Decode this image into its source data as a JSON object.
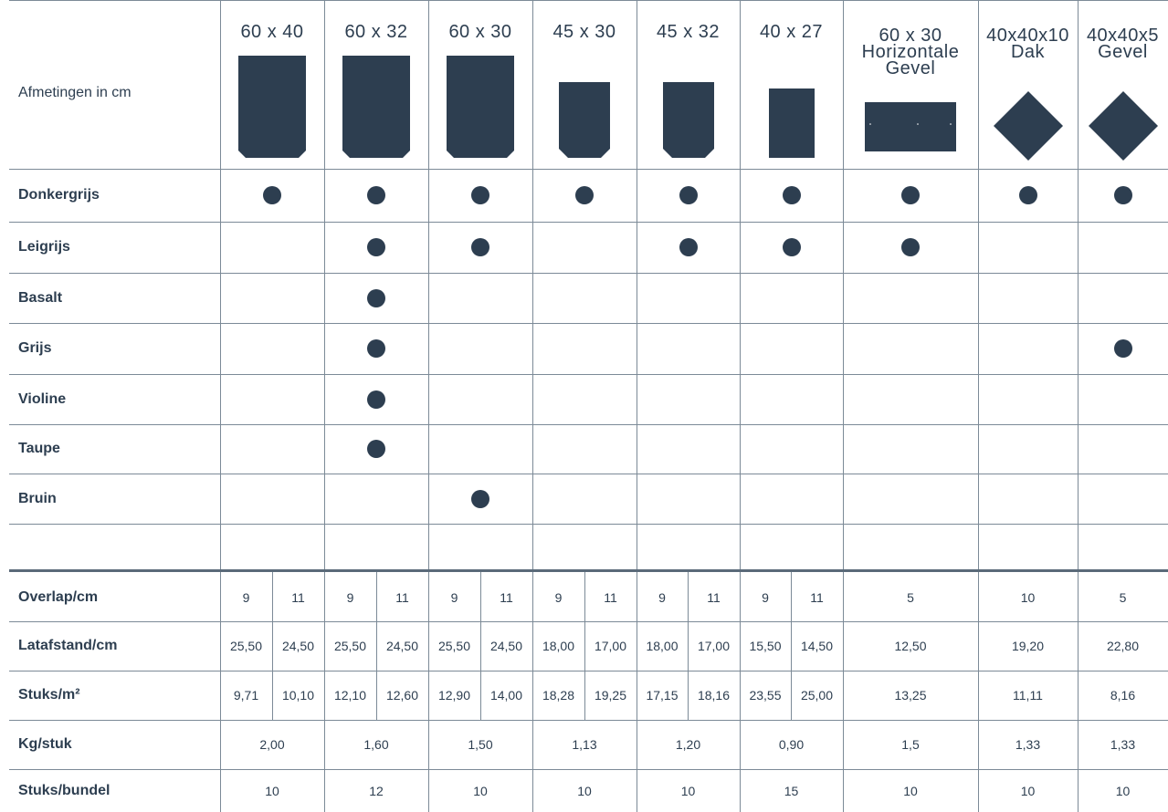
{
  "header_label": "Afmetingen in cm",
  "colors": {
    "ink": "#2d3e50",
    "line": "#7c8a97"
  },
  "columns": [
    {
      "label": "60 x 40",
      "shape": "tile-tall-bevel"
    },
    {
      "label": "60 x 32",
      "shape": "tile-tall-bevel"
    },
    {
      "label": "60 x 30",
      "shape": "tile-tall-bevel"
    },
    {
      "label": "45 x 30",
      "shape": "tile-short-bevel"
    },
    {
      "label": "45 x 32",
      "shape": "tile-short-bevel"
    },
    {
      "label": "40 x 27",
      "shape": "tile-rectangle"
    },
    {
      "label_lines": [
        "60 x 30",
        "Horizontale",
        "Gevel"
      ],
      "shape": "tile-horizontal"
    },
    {
      "label_lines": [
        "40x40x10",
        "Dak"
      ],
      "shape": "tile-diamond"
    },
    {
      "label_lines": [
        "40x40x5",
        "Gevel"
      ],
      "shape": "tile-diamond"
    }
  ],
  "colors_rows": [
    {
      "name": "Donkergrijs",
      "available": [
        1,
        1,
        1,
        1,
        1,
        1,
        1,
        1,
        1
      ]
    },
    {
      "name": "Leigrijs",
      "available": [
        0,
        1,
        1,
        0,
        1,
        1,
        1,
        0,
        0
      ]
    },
    {
      "name": "Basalt",
      "available": [
        0,
        1,
        0,
        0,
        0,
        0,
        0,
        0,
        0
      ]
    },
    {
      "name": "Grijs",
      "available": [
        0,
        1,
        0,
        0,
        0,
        0,
        0,
        0,
        1
      ]
    },
    {
      "name": "Violine",
      "available": [
        0,
        1,
        0,
        0,
        0,
        0,
        0,
        0,
        0
      ]
    },
    {
      "name": "Taupe",
      "available": [
        0,
        1,
        0,
        0,
        0,
        0,
        0,
        0,
        0
      ]
    },
    {
      "name": "Bruin",
      "available": [
        0,
        0,
        1,
        0,
        0,
        0,
        0,
        0,
        0
      ]
    },
    {
      "name": "",
      "available": [
        0,
        0,
        0,
        0,
        0,
        0,
        0,
        0,
        0
      ]
    }
  ],
  "spec_rows": [
    {
      "name": "Overlap/cm",
      "values": [
        "9",
        "11",
        "9",
        "11",
        "9",
        "11",
        "9",
        "11",
        "9",
        "11",
        "9",
        "11",
        "5",
        "10",
        "5"
      ]
    },
    {
      "name": "Latafstand/cm",
      "values": [
        "25,50",
        "24,50",
        "25,50",
        "24,50",
        "25,50",
        "24,50",
        "18,00",
        "17,00",
        "18,00",
        "17,00",
        "15,50",
        "14,50",
        "12,50",
        "19,20",
        "22,80"
      ]
    },
    {
      "name": "Stuks/m²",
      "values": [
        "9,71",
        "10,10",
        "12,10",
        "12,60",
        "12,90",
        "14,00",
        "18,28",
        "19,25",
        "17,15",
        "18,16",
        "23,55",
        "25,00",
        "13,25",
        "11,11",
        "8,16"
      ]
    },
    {
      "name": "Kg/stuk",
      "values": [
        "2,00",
        "1,60",
        "1,50",
        "1,13",
        "1,20",
        "0,90",
        "1,5",
        "1,33",
        "1,33"
      ]
    },
    {
      "name": "Stuks/bundel",
      "values": [
        "10",
        "12",
        "10",
        "10",
        "10",
        "15",
        "10",
        "10",
        "10"
      ]
    }
  ]
}
